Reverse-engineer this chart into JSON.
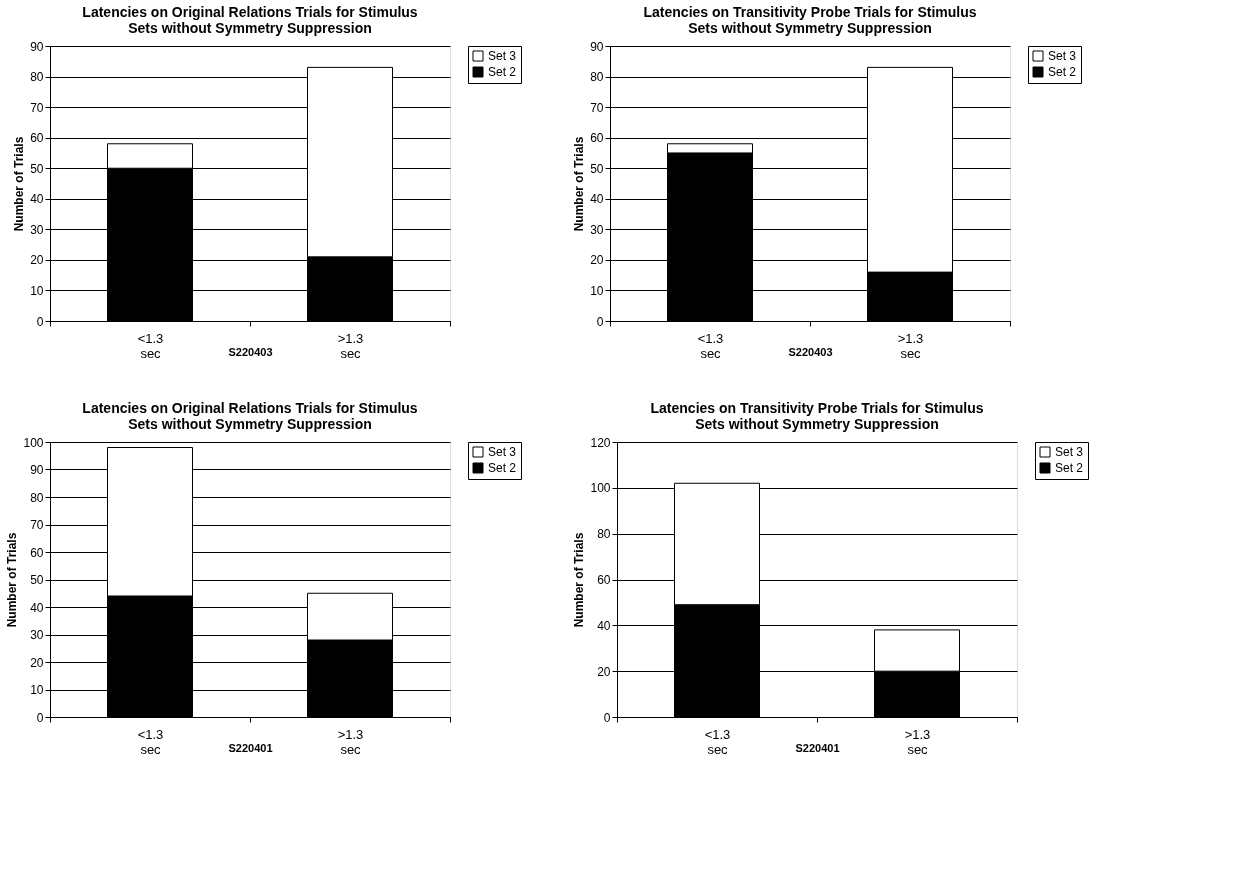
{
  "chart_data": [
    {
      "type": "bar",
      "title": "Latencies on Original Relations Trials for Stimulus Sets without Symmetry Suppression",
      "xlabel": "S220403",
      "ylabel": "Number of Trials",
      "categories": [
        "<1.3 sec",
        ">1.3 sec"
      ],
      "stacked": true,
      "ylim": [
        0,
        90
      ],
      "yticks": [
        0,
        10,
        20,
        30,
        40,
        50,
        60,
        70,
        80,
        90
      ],
      "grid": "y",
      "legend": "right",
      "series": [
        {
          "name": "Set 2",
          "color": "#000000",
          "values": [
            50,
            21
          ]
        },
        {
          "name": "Set 3",
          "color": "#ffffff",
          "values": [
            8,
            62
          ]
        }
      ]
    },
    {
      "type": "bar",
      "title": "Latencies on Transitivity Probe Trials for Stimulus Sets without Symmetry Suppression",
      "xlabel": "S220403",
      "ylabel": "Number of Trials",
      "categories": [
        "<1.3 sec",
        ">1.3 sec"
      ],
      "stacked": true,
      "ylim": [
        0,
        90
      ],
      "yticks": [
        0,
        10,
        20,
        30,
        40,
        50,
        60,
        70,
        80,
        90
      ],
      "grid": "y",
      "legend": "right",
      "series": [
        {
          "name": "Set 2",
          "color": "#000000",
          "values": [
            55,
            16
          ]
        },
        {
          "name": "Set 3",
          "color": "#ffffff",
          "values": [
            3,
            67
          ]
        }
      ]
    },
    {
      "type": "bar",
      "title": "Latencies on Original Relations Trials for Stimulus Sets without Symmetry Suppression",
      "xlabel": "S220401",
      "ylabel": "Number of Trials",
      "categories": [
        "<1.3 sec",
        ">1.3 sec"
      ],
      "stacked": true,
      "ylim": [
        0,
        100
      ],
      "yticks": [
        0,
        10,
        20,
        30,
        40,
        50,
        60,
        70,
        80,
        90,
        100
      ],
      "grid": "y",
      "legend": "right",
      "series": [
        {
          "name": "Set 2",
          "color": "#000000",
          "values": [
            44,
            28
          ]
        },
        {
          "name": "Set 3",
          "color": "#ffffff",
          "values": [
            54,
            17
          ]
        }
      ]
    },
    {
      "type": "bar",
      "title": "Latencies on Transitivity Probe Trials for Stimulus Sets without Symmetry Suppression",
      "xlabel": "S220401",
      "ylabel": "Number of Trials",
      "categories": [
        "<1.3 sec",
        ">1.3 sec"
      ],
      "stacked": true,
      "ylim": [
        0,
        120
      ],
      "yticks": [
        0,
        20,
        40,
        60,
        80,
        100,
        120
      ],
      "grid": "y",
      "legend": "right",
      "series": [
        {
          "name": "Set 2",
          "color": "#000000",
          "values": [
            49,
            20
          ]
        },
        {
          "name": "Set 3",
          "color": "#ffffff",
          "values": [
            53,
            18
          ]
        }
      ]
    }
  ]
}
